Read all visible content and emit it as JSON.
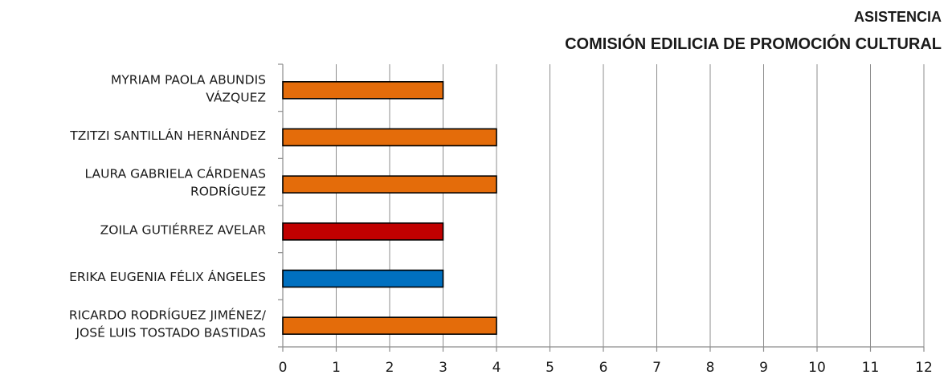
{
  "chart_data": {
    "type": "bar",
    "orientation": "horizontal",
    "title": [
      "ASISTENCIA",
      "COMISIÓN EDILICIA DE PROMOCIÓN CULTURAL"
    ],
    "categories": [
      [
        "MYRIAM PAOLA ABUNDIS",
        "VÁZQUEZ"
      ],
      [
        "TZITZI SANTILLÁN HERNÁNDEZ"
      ],
      [
        "LAURA GABRIELA CÁRDENAS",
        "RODRÍGUEZ"
      ],
      [
        "ZOILA GUTIÉRREZ AVELAR"
      ],
      [
        "ERIKA EUGENIA FÉLIX ÁNGELES"
      ],
      [
        "RICARDO RODRÍGUEZ JIMÉNEZ/",
        "JOSÉ LUIS TOSTADO BASTIDAS"
      ]
    ],
    "values": [
      3,
      4,
      4,
      3,
      3,
      4
    ],
    "bar_colors": [
      "#E46C0A",
      "#E46C0A",
      "#E46C0A",
      "#C00000",
      "#0070C0",
      "#E46C0A"
    ],
    "xlim": [
      0,
      12
    ],
    "xticks": [
      "0",
      "1",
      "2",
      "3",
      "4",
      "5",
      "6",
      "7",
      "8",
      "9",
      "10",
      "11",
      "12"
    ],
    "xlabel": "",
    "ylabel": "",
    "grid": "vertical",
    "legend": "none"
  }
}
